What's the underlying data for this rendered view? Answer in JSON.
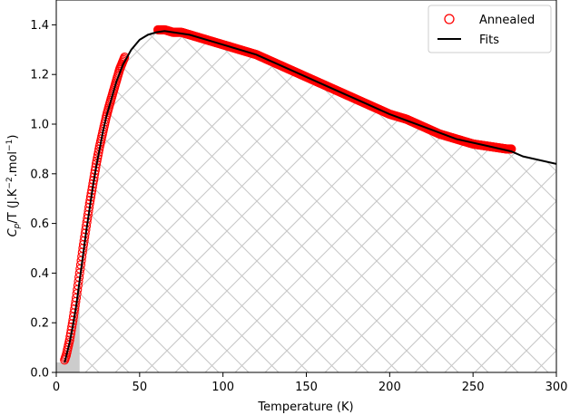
{
  "chart_data": {
    "type": "scatter",
    "xlabel": "Temperature (K)",
    "ylabel_parts": [
      "C",
      "p",
      "/T (J.K",
      "−2",
      ".mol",
      "−1",
      ")"
    ],
    "xlim": [
      0,
      300
    ],
    "ylim": [
      0,
      1.5
    ],
    "xticks": [
      0,
      50,
      100,
      150,
      200,
      250,
      300
    ],
    "yticks": [
      0.0,
      0.2,
      0.4,
      0.6,
      0.8,
      1.0,
      1.2,
      1.4
    ],
    "ytick_labels": [
      "0.0",
      "0.2",
      "0.4",
      "0.6",
      "0.8",
      "1.0",
      "1.2",
      "1.4"
    ],
    "legend_position": "top-right",
    "grid": false,
    "series": [
      {
        "name": "Annealed",
        "kind": "scatter",
        "marker": "open-circle",
        "color": "#ff0000",
        "x_range": [
          5,
          273
        ],
        "points": [
          [
            5,
            0.05
          ],
          [
            6,
            0.07
          ],
          [
            7,
            0.1
          ],
          [
            8,
            0.13
          ],
          [
            9,
            0.17
          ],
          [
            10,
            0.21
          ],
          [
            12,
            0.3
          ],
          [
            14,
            0.4
          ],
          [
            16,
            0.5
          ],
          [
            18,
            0.59
          ],
          [
            20,
            0.68
          ],
          [
            22,
            0.76
          ],
          [
            24,
            0.84
          ],
          [
            26,
            0.91
          ],
          [
            28,
            0.97
          ],
          [
            30,
            1.03
          ],
          [
            32,
            1.08
          ],
          [
            35,
            1.15
          ],
          [
            38,
            1.22
          ],
          [
            41,
            1.27
          ],
          [
            61,
            1.38
          ],
          [
            65,
            1.38
          ],
          [
            70,
            1.37
          ],
          [
            75,
            1.37
          ],
          [
            80,
            1.36
          ],
          [
            85,
            1.35
          ],
          [
            90,
            1.34
          ],
          [
            95,
            1.33
          ],
          [
            100,
            1.32
          ],
          [
            110,
            1.3
          ],
          [
            120,
            1.28
          ],
          [
            130,
            1.25
          ],
          [
            140,
            1.22
          ],
          [
            150,
            1.19
          ],
          [
            160,
            1.16
          ],
          [
            170,
            1.13
          ],
          [
            180,
            1.1
          ],
          [
            190,
            1.07
          ],
          [
            200,
            1.04
          ],
          [
            210,
            1.02
          ],
          [
            220,
            0.99
          ],
          [
            230,
            0.96
          ],
          [
            240,
            0.94
          ],
          [
            250,
            0.92
          ],
          [
            260,
            0.91
          ],
          [
            270,
            0.9
          ],
          [
            273,
            0.9
          ]
        ]
      },
      {
        "name": "Fits",
        "kind": "line",
        "color": "#000000",
        "points": [
          [
            5,
            0.04
          ],
          [
            8,
            0.12
          ],
          [
            10,
            0.19
          ],
          [
            12,
            0.27
          ],
          [
            14,
            0.37
          ],
          [
            16,
            0.47
          ],
          [
            18,
            0.57
          ],
          [
            20,
            0.66
          ],
          [
            22,
            0.75
          ],
          [
            24,
            0.83
          ],
          [
            26,
            0.9
          ],
          [
            28,
            0.97
          ],
          [
            30,
            1.03
          ],
          [
            33,
            1.1
          ],
          [
            36,
            1.17
          ],
          [
            40,
            1.24
          ],
          [
            45,
            1.3
          ],
          [
            50,
            1.34
          ],
          [
            55,
            1.36
          ],
          [
            60,
            1.37
          ],
          [
            65,
            1.375
          ],
          [
            70,
            1.37
          ],
          [
            80,
            1.36
          ],
          [
            90,
            1.34
          ],
          [
            100,
            1.32
          ],
          [
            120,
            1.28
          ],
          [
            140,
            1.22
          ],
          [
            160,
            1.16
          ],
          [
            180,
            1.1
          ],
          [
            200,
            1.04
          ],
          [
            220,
            0.99
          ],
          [
            240,
            0.94
          ],
          [
            260,
            0.91
          ],
          [
            273,
            0.89
          ],
          [
            280,
            0.87
          ],
          [
            300,
            0.84
          ]
        ]
      }
    ],
    "shaded_regions": [
      {
        "x_range": [
          0,
          14
        ],
        "fill": "#c8c8c8",
        "style": "solid"
      },
      {
        "x_range": [
          14,
          300
        ],
        "fill": "#c8c8c8",
        "style": "crosshatch"
      }
    ]
  }
}
